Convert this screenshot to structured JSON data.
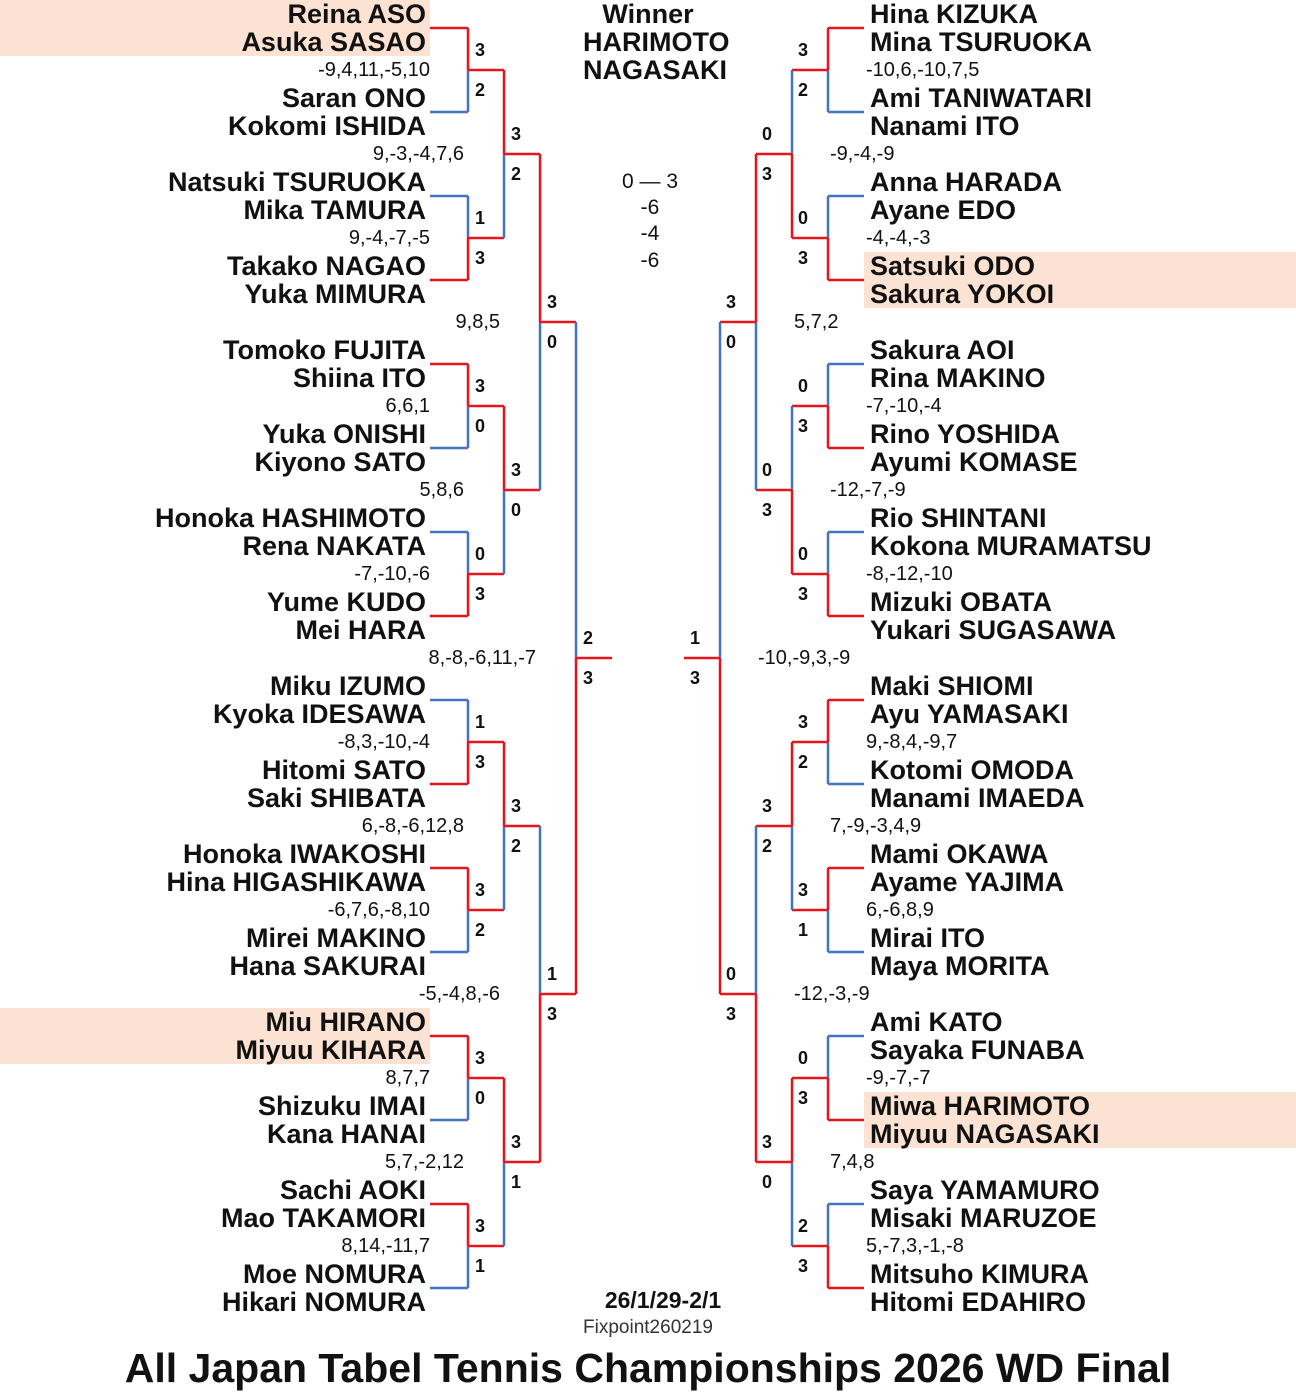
{
  "winner": {
    "label": "Winner",
    "names": [
      "HARIMOTO",
      "NAGASAKI"
    ]
  },
  "final": {
    "score": "0 — 3",
    "games": [
      "-6",
      "-4",
      "-6"
    ]
  },
  "dates": "26/1/29-2/1",
  "fixpoint": "Fixpoint260219",
  "title": "All Japan Tabel Tennis Championships 2026 WD Final",
  "colors": {
    "winner_line": "#e8141c",
    "loser_line": "#4472c4",
    "highlight": "#fbe2d2"
  },
  "left": {
    "pairs": [
      [
        "Reina ASO",
        "Asuka SASAO"
      ],
      [
        "Saran ONO",
        "Kokomi ISHIDA"
      ],
      [
        "Natsuki TSURUOKA",
        "Mika TAMURA"
      ],
      [
        "Takako NAGAO",
        "Yuka MIMURA"
      ],
      [
        "Tomoko FUJITA",
        "Shiina ITO"
      ],
      [
        "Yuka ONISHI",
        "Kiyono SATO"
      ],
      [
        "Honoka HASHIMOTO",
        "Rena NAKATA"
      ],
      [
        "Yume KUDO",
        "Mei HARA"
      ],
      [
        "Miku IZUMO",
        "Kyoka IDESAWA"
      ],
      [
        "Hitomi SATO",
        "Saki SHIBATA"
      ],
      [
        "Honoka IWAKOSHI",
        "Hina HIGASHIKAWA"
      ],
      [
        "Mirei MAKINO",
        "Hana SAKURAI"
      ],
      [
        "Miu HIRANO",
        "Miyuu KIHARA"
      ],
      [
        "Shizuku IMAI",
        "Kana HANAI"
      ],
      [
        "Sachi AOKI",
        "Mao TAKAMORI"
      ],
      [
        "Moe NOMURA",
        "Hikari NOMURA"
      ]
    ],
    "highlighted_pairs": [
      0,
      12
    ],
    "match_scores": [
      [
        [
          3,
          2
        ],
        [
          1,
          3
        ],
        [
          3,
          0
        ],
        [
          0,
          3
        ],
        [
          1,
          3
        ],
        [
          3,
          2
        ],
        [
          3,
          0
        ],
        [
          3,
          1
        ]
      ],
      [
        [
          3,
          2
        ],
        [
          3,
          0
        ],
        [
          3,
          2
        ],
        [
          3,
          1
        ]
      ],
      [
        [
          3,
          0
        ],
        [
          1,
          3
        ]
      ],
      [
        [
          2,
          3
        ]
      ]
    ],
    "game_scores": [
      [
        "-9,4,11,-5,10",
        "9,-4,-7,-5",
        "6,6,1",
        "-7,-10,-6",
        "-8,3,-10,-4",
        "-6,7,6,-8,10",
        "8,7,7",
        "8,14,-11,7"
      ],
      [
        "9,-3,-4,7,6",
        "5,8,6",
        "6,-8,-6,12,8",
        "5,7,-2,12"
      ],
      [
        "9,8,5",
        "-5,-4,8,-6"
      ],
      [
        "8,-8,-6,11,-7"
      ]
    ]
  },
  "right": {
    "pairs": [
      [
        "Hina KIZUKA",
        "Mina TSURUOKA"
      ],
      [
        "Ami TANIWATARI",
        "Nanami ITO"
      ],
      [
        "Anna HARADA",
        "Ayane EDO"
      ],
      [
        "Satsuki ODO",
        "Sakura YOKOI"
      ],
      [
        "Sakura AOI",
        "Rina MAKINO"
      ],
      [
        "Rino YOSHIDA",
        "Ayumi KOMASE"
      ],
      [
        "Rio SHINTANI",
        "Kokona MURAMATSU"
      ],
      [
        "Mizuki OBATA",
        "Yukari SUGASAWA"
      ],
      [
        "Maki SHIOMI",
        "Ayu YAMASAKI"
      ],
      [
        "Kotomi OMODA",
        "Manami IMAEDA"
      ],
      [
        "Mami OKAWA",
        "Ayame YAJIMA"
      ],
      [
        "Mirai ITO",
        "Maya MORITA"
      ],
      [
        "Ami KATO",
        "Sayaka FUNABA"
      ],
      [
        "Miwa HARIMOTO",
        "Miyuu NAGASAKI"
      ],
      [
        "Saya YAMAMURO",
        "Misaki MARUZOE"
      ],
      [
        "Mitsuho KIMURA",
        "Hitomi EDAHIRO"
      ]
    ],
    "highlighted_pairs": [
      3,
      13
    ],
    "match_scores": [
      [
        [
          3,
          2
        ],
        [
          0,
          3
        ],
        [
          0,
          3
        ],
        [
          0,
          3
        ],
        [
          3,
          2
        ],
        [
          3,
          1
        ],
        [
          0,
          3
        ],
        [
          2,
          3
        ]
      ],
      [
        [
          0,
          3
        ],
        [
          0,
          3
        ],
        [
          3,
          2
        ],
        [
          3,
          0
        ]
      ],
      [
        [
          3,
          0
        ],
        [
          0,
          3
        ]
      ],
      [
        [
          1,
          3
        ]
      ]
    ],
    "game_scores": [
      [
        "-10,6,-10,7,5",
        "-4,-4,-3",
        "-7,-10,-4",
        "-8,-12,-10",
        "9,-8,4,-9,7",
        "6,-6,8,9",
        "-9,-7,-7",
        "5,-7,3,-1,-8"
      ],
      [
        "-9,-4,-9",
        "-12,-7,-9",
        "7,-9,-3,4,9",
        "7,4,8"
      ],
      [
        "5,7,2",
        "-12,-3,-9"
      ],
      [
        "-10,-9,3,-9"
      ]
    ]
  }
}
